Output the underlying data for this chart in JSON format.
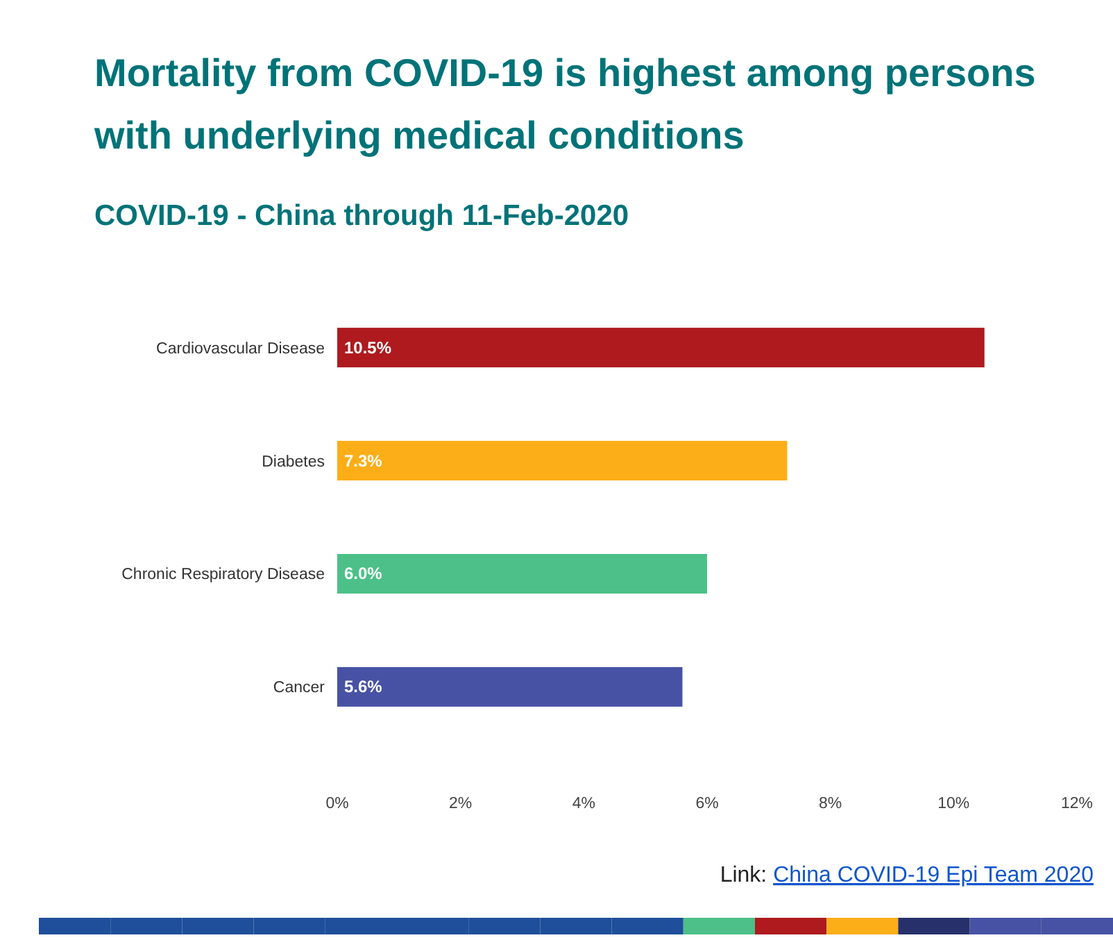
{
  "chart_data": {
    "type": "bar",
    "orientation": "horizontal",
    "title": "Mortality from COVID-19 is highest among persons with underlying medical conditions",
    "subtitle": "COVID-19 - China through 11-Feb-2020",
    "categories": [
      "Cardiovascular Disease",
      "Diabetes",
      "Chronic Respiratory Disease",
      "Cancer"
    ],
    "values": [
      10.5,
      7.3,
      6.0,
      5.6
    ],
    "colors": [
      "#ae1a1e",
      "#fbae17",
      "#4cc088",
      "#4752a4"
    ],
    "value_labels": [
      "10.5%",
      "7.3%",
      "6.0%",
      "5.6%"
    ],
    "xlim": [
      0,
      12
    ],
    "xticks": [
      {
        "value": 0,
        "label": "0%"
      },
      {
        "value": 2,
        "label": "2%"
      },
      {
        "value": 4,
        "label": "4%"
      },
      {
        "value": 6,
        "label": "6%"
      },
      {
        "value": 8,
        "label": "8%"
      },
      {
        "value": 10,
        "label": "10%"
      },
      {
        "value": 12,
        "label": "12%"
      }
    ],
    "grid": false,
    "annotations": [
      "Link: China COVID-19 Epi Team 2020"
    ]
  }
}
